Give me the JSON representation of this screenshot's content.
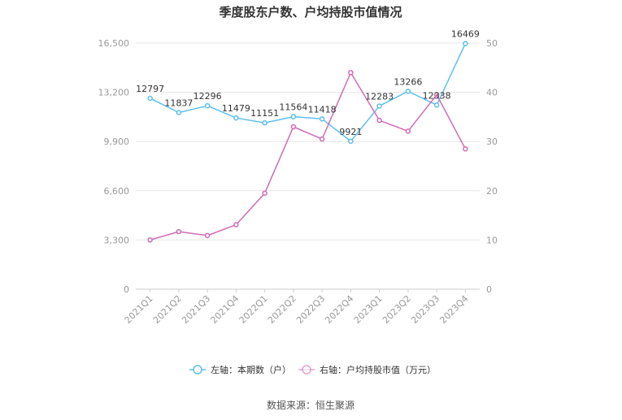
{
  "chart_data": {
    "type": "line",
    "title": "季度股东户数、户均持股市值情况",
    "categories": [
      "2021Q1",
      "2021Q2",
      "2021Q3",
      "2021Q4",
      "2022Q1",
      "2022Q2",
      "2022Q3",
      "2022Q4",
      "2023Q1",
      "2023Q2",
      "2023Q3",
      "2023Q4"
    ],
    "left_axis": {
      "ticks": [
        "0",
        "3,300",
        "6,600",
        "9,900",
        "13,200",
        "16,500"
      ],
      "ylim": [
        0,
        16500
      ]
    },
    "right_axis": {
      "ticks": [
        "0",
        "10",
        "20",
        "30",
        "40",
        "50"
      ],
      "ylim": [
        0,
        50
      ]
    },
    "grid": true,
    "legend_position": "bottom",
    "series": [
      {
        "name": "左轴：本期数（户）",
        "axis": "left",
        "color": "#5bc0f0",
        "values": [
          12797,
          11837,
          12296,
          11479,
          11151,
          11564,
          11418,
          9921,
          12283,
          13266,
          12338,
          16469
        ],
        "labels": [
          "12797",
          "11837",
          "12296",
          "11479",
          "11151",
          "11564",
          "11418",
          "9921",
          "12283",
          "13266",
          "12338",
          "16469"
        ]
      },
      {
        "name": "右轴：户均持股市值（万元）",
        "axis": "right",
        "color": "#d36bb5",
        "values": [
          10.0,
          11.7,
          10.9,
          13.1,
          19.5,
          33.0,
          30.5,
          44.0,
          34.3,
          32.1,
          39.5,
          28.5
        ]
      }
    ]
  },
  "source": "数据来源：恒生聚源"
}
